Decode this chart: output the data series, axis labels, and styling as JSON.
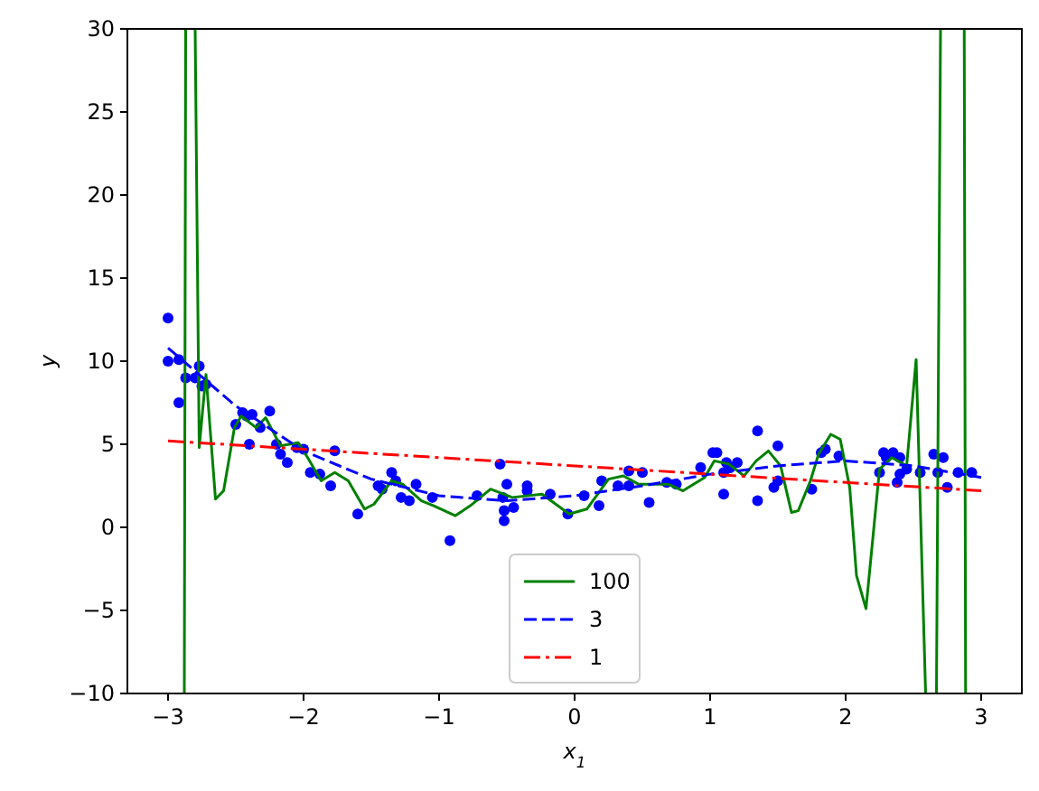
{
  "chart_data": {
    "type": "scatter",
    "xlabel": "x$_{1}$",
    "ylabel": "y",
    "xlim": [
      -3.3,
      3.3
    ],
    "ylim": [
      -10,
      30
    ],
    "xticks": [
      -3,
      -2,
      -1,
      0,
      1,
      2,
      3
    ],
    "yticks": [
      -10,
      -5,
      0,
      5,
      10,
      15,
      20,
      25,
      30
    ],
    "grid": false,
    "legend": "bottom",
    "series": [
      {
        "color": "#0000ff",
        "marker": "circle",
        "x": [
          -3,
          -3,
          -2.92,
          -2.92,
          -2.87,
          -2.8,
          -2.77,
          -2.75,
          -2.72,
          -2.5,
          -2.45,
          -2.42,
          -2.4,
          -2.38,
          -2.32,
          -2.25,
          -2.2,
          -2.17,
          -2.12,
          -2.05,
          -2.0,
          -1.95,
          -1.88,
          -1.8,
          -1.77,
          -1.6,
          -1.45,
          -1.42,
          -1.35,
          -1.32,
          -1.28,
          -1.22,
          -1.17,
          -1.05,
          -0.92,
          -0.72,
          -0.55,
          -0.53,
          -0.52,
          -0.52,
          -0.5,
          -0.45,
          -0.35,
          -0.35,
          -0.18,
          -0.05,
          0.07,
          0.18,
          0.2,
          0.32,
          0.4,
          0.4,
          0.5,
          0.55,
          0.68,
          0.75,
          0.93,
          1.02,
          1.05,
          1.1,
          1.1,
          1.12,
          1.15,
          1.2,
          1.35,
          1.35,
          1.47,
          1.5,
          1.5,
          1.75,
          1.82,
          1.85,
          1.95,
          2.25,
          2.28,
          2.3,
          2.35,
          2.38,
          2.4,
          2.4,
          2.45,
          2.55,
          2.65,
          2.68,
          2.72,
          2.75,
          2.83,
          2.93
        ],
        "values": [
          12.6,
          10,
          10.1,
          7.5,
          9,
          9,
          9.7,
          8.5,
          8.6,
          6.2,
          6.9,
          6.7,
          5,
          6.8,
          6,
          7,
          5,
          4.4,
          3.9,
          4.8,
          4.7,
          3.3,
          3.2,
          2.5,
          4.6,
          0.8,
          2.5,
          2.3,
          3.3,
          2.8,
          1.8,
          1.6,
          2.6,
          1.8,
          -0.8,
          1.9,
          3.8,
          1.8,
          0.4,
          1,
          2.6,
          1.2,
          2.5,
          2.2,
          2,
          0.8,
          1.9,
          1.3,
          2.8,
          2.5,
          3.4,
          2.5,
          3.3,
          1.5,
          2.7,
          2.6,
          3.6,
          4.5,
          4.5,
          3.3,
          2,
          3.9,
          3.6,
          3.9,
          1.6,
          5.8,
          2.4,
          2.8,
          4.9,
          2.3,
          4.5,
          4.7,
          4.3,
          3.3,
          4.5,
          4.2,
          4.5,
          2.7,
          3.2,
          4.2,
          3.5,
          3.3,
          4.4,
          3.3,
          4.2,
          2.4,
          3.3,
          3.3
        ]
      },
      {
        "type": "line",
        "name": "100",
        "color": "#008000",
        "line_style": "solid",
        "x": [
          -2.88,
          -2.87,
          -2.84,
          -2.8,
          -2.77,
          -2.72,
          -2.65,
          -2.59,
          -2.51,
          -2.46,
          -2.35,
          -2.28,
          -2.17,
          -2.04,
          -1.97,
          -1.87,
          -1.77,
          -1.67,
          -1.55,
          -1.48,
          -1.35,
          -1.27,
          -1.13,
          -1.04,
          -0.88,
          -0.77,
          -0.62,
          -0.46,
          -0.24,
          -0.04,
          0.09,
          0.25,
          0.36,
          0.47,
          0.69,
          0.8,
          0.96,
          1.03,
          1.14,
          1.25,
          1.34,
          1.43,
          1.52,
          1.6,
          1.65,
          1.74,
          1.8,
          1.89,
          1.96,
          2.03,
          2.08,
          2.15,
          2.25,
          2.34,
          2.45,
          2.52,
          2.59,
          2.63,
          2.67,
          2.7,
          2.79,
          2.875,
          2.885
        ],
        "values": [
          -10,
          30,
          null,
          30,
          4.8,
          9.2,
          1.7,
          2.2,
          6,
          6.7,
          6,
          6.6,
          4.9,
          5.1,
          4.2,
          2.8,
          3.3,
          2.8,
          1.1,
          1.4,
          2.8,
          2.6,
          1.6,
          1.3,
          0.7,
          1.3,
          2.3,
          1.8,
          2,
          0.8,
          1.1,
          2.9,
          3.1,
          2.6,
          2.6,
          2.2,
          3,
          4,
          3.8,
          3.1,
          4,
          4.6,
          3.7,
          0.9,
          1,
          2.8,
          4.4,
          5.6,
          5.3,
          2.4,
          -2.9,
          -4.9,
          3.5,
          4.2,
          3.7,
          10.1,
          -10,
          null,
          -10,
          30,
          null,
          30,
          -10
        ]
      },
      {
        "type": "line",
        "name": "3",
        "color": "#0000ff",
        "line_style": "dashed",
        "x": [
          -3,
          -2.5,
          -2,
          -1.5,
          -1,
          -0.5,
          0,
          0.5,
          1,
          1.5,
          2,
          2.5,
          3
        ],
        "values": [
          10.8,
          7.3,
          4.6,
          2.9,
          1.9,
          1.6,
          1.9,
          2.5,
          3.2,
          3.7,
          4,
          3.7,
          3
        ]
      },
      {
        "type": "line",
        "name": "1",
        "color": "#ff0000",
        "line_style": "dashdot",
        "x": [
          -3,
          3
        ],
        "values": [
          5.2,
          2.2
        ]
      }
    ]
  }
}
